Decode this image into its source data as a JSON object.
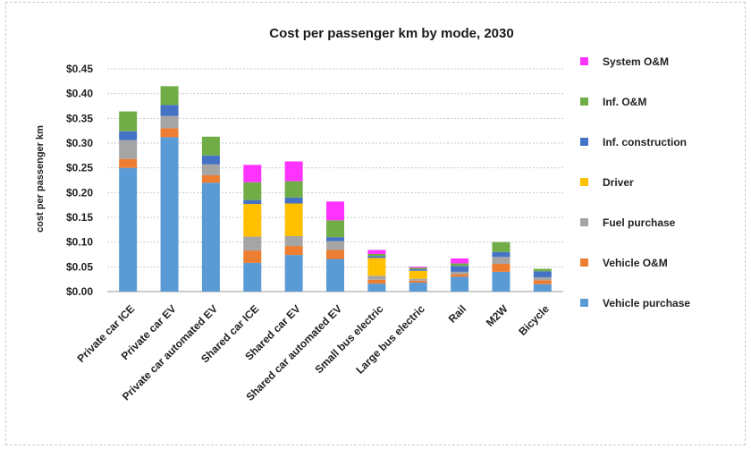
{
  "chart_data": {
    "type": "bar",
    "stacked": true,
    "title": "Cost per passenger km by mode, 2030",
    "xlabel": "",
    "ylabel": "cost per passenger km",
    "ylim": [
      0,
      0.45
    ],
    "yticks": [
      0,
      0.05,
      0.1,
      0.15,
      0.2,
      0.25,
      0.3,
      0.35,
      0.4,
      0.45
    ],
    "ytick_labels": [
      "$0.00",
      "$0.05",
      "$0.10",
      "$0.15",
      "$0.20",
      "$0.25",
      "$0.30",
      "$0.35",
      "$0.40",
      "$0.45"
    ],
    "grid": "horizontal dotted",
    "legend_position": "right",
    "categories": [
      "Private car ICE",
      "Private car EV",
      "Private car automated EV",
      "Shared car ICE",
      "Shared car EV",
      "Shared car automated EV",
      "Small bus electric",
      "Large bus electric",
      "Rail",
      "M2W",
      "Bicycle"
    ],
    "series": [
      {
        "name": "Vehicle purchase",
        "color": "#5b9bd5",
        "values": [
          0.25,
          0.312,
          0.22,
          0.058,
          0.074,
          0.066,
          0.016,
          0.018,
          0.03,
          0.04,
          0.015
        ]
      },
      {
        "name": "Vehicle O&M",
        "color": "#ed7d31",
        "values": [
          0.018,
          0.018,
          0.015,
          0.025,
          0.018,
          0.018,
          0.008,
          0.004,
          0.005,
          0.016,
          0.008
        ]
      },
      {
        "name": "Fuel purchase",
        "color": "#a5a5a5",
        "values": [
          0.038,
          0.025,
          0.022,
          0.028,
          0.02,
          0.018,
          0.008,
          0.004,
          0.005,
          0.014,
          0.006
        ]
      },
      {
        "name": "Driver",
        "color": "#ffc000",
        "values": [
          0.0,
          0.0,
          0.0,
          0.066,
          0.066,
          0.0,
          0.036,
          0.016,
          0.0,
          0.0,
          0.0
        ]
      },
      {
        "name": "Inf. construction",
        "color": "#4472c4",
        "values": [
          0.018,
          0.022,
          0.018,
          0.008,
          0.012,
          0.008,
          0.004,
          0.003,
          0.012,
          0.01,
          0.012
        ]
      },
      {
        "name": "Inf. O&M",
        "color": "#70ad47",
        "values": [
          0.04,
          0.038,
          0.038,
          0.036,
          0.033,
          0.034,
          0.004,
          0.003,
          0.005,
          0.02,
          0.005
        ]
      },
      {
        "name": "System O&M",
        "color": "#ff33ff",
        "values": [
          0.0,
          0.0,
          0.0,
          0.035,
          0.04,
          0.038,
          0.008,
          0.002,
          0.01,
          0.0,
          0.0
        ]
      }
    ],
    "legend_order": [
      "System O&M",
      "Inf. O&M",
      "Inf. construction",
      "Driver",
      "Fuel purchase",
      "Vehicle O&M",
      "Vehicle purchase"
    ]
  }
}
